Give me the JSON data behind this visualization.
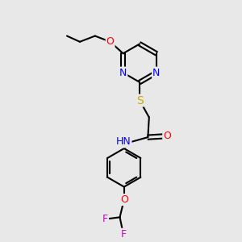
{
  "background_color": "#e8e8e8",
  "bond_color": "#000000",
  "atom_colors": {
    "N": "#0000ff",
    "O": "#ff0000",
    "S": "#ccaa00",
    "F": "#cc00cc",
    "H": "#000000",
    "C": "#000000"
  },
  "font_size": 9,
  "fig_size": [
    3.0,
    3.0
  ],
  "dpi": 100
}
